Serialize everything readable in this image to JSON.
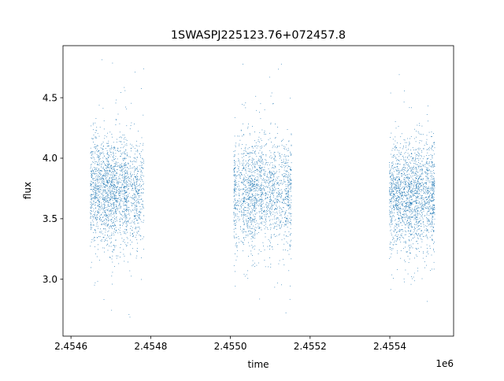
{
  "chart_data": {
    "type": "scatter",
    "title": "1SWASPJ225123.76+072457.8",
    "xlabel": "time",
    "ylabel": "flux",
    "x_offset_label": "1e6",
    "xlim": [
      2.45458,
      2.45556
    ],
    "ylim": [
      2.53,
      4.93
    ],
    "x_ticks": [
      2.4546,
      2.4548,
      2.455,
      2.4552,
      2.4554
    ],
    "x_tick_labels": [
      "2.4546",
      "2.4548",
      "2.4550",
      "2.4552",
      "2.4554"
    ],
    "y_ticks": [
      3.0,
      3.5,
      4.0,
      4.5
    ],
    "y_tick_labels": [
      "3.0",
      "3.5",
      "4.0",
      "4.5"
    ],
    "grid": false,
    "marker_color": "#1f77b4",
    "clusters": [
      {
        "x": [
          2.45465,
          2.45478
        ],
        "y_center": 3.72,
        "y_spread": 0.22,
        "y_range": [
          2.65,
          4.82
        ]
      },
      {
        "x": [
          2.45501,
          2.45515
        ],
        "y_center": 3.72,
        "y_spread": 0.22,
        "y_range": [
          2.62,
          4.82
        ]
      },
      {
        "x": [
          2.4554,
          2.45551
        ],
        "y_center": 3.7,
        "y_spread": 0.22,
        "y_range": [
          2.65,
          4.75
        ]
      }
    ]
  }
}
